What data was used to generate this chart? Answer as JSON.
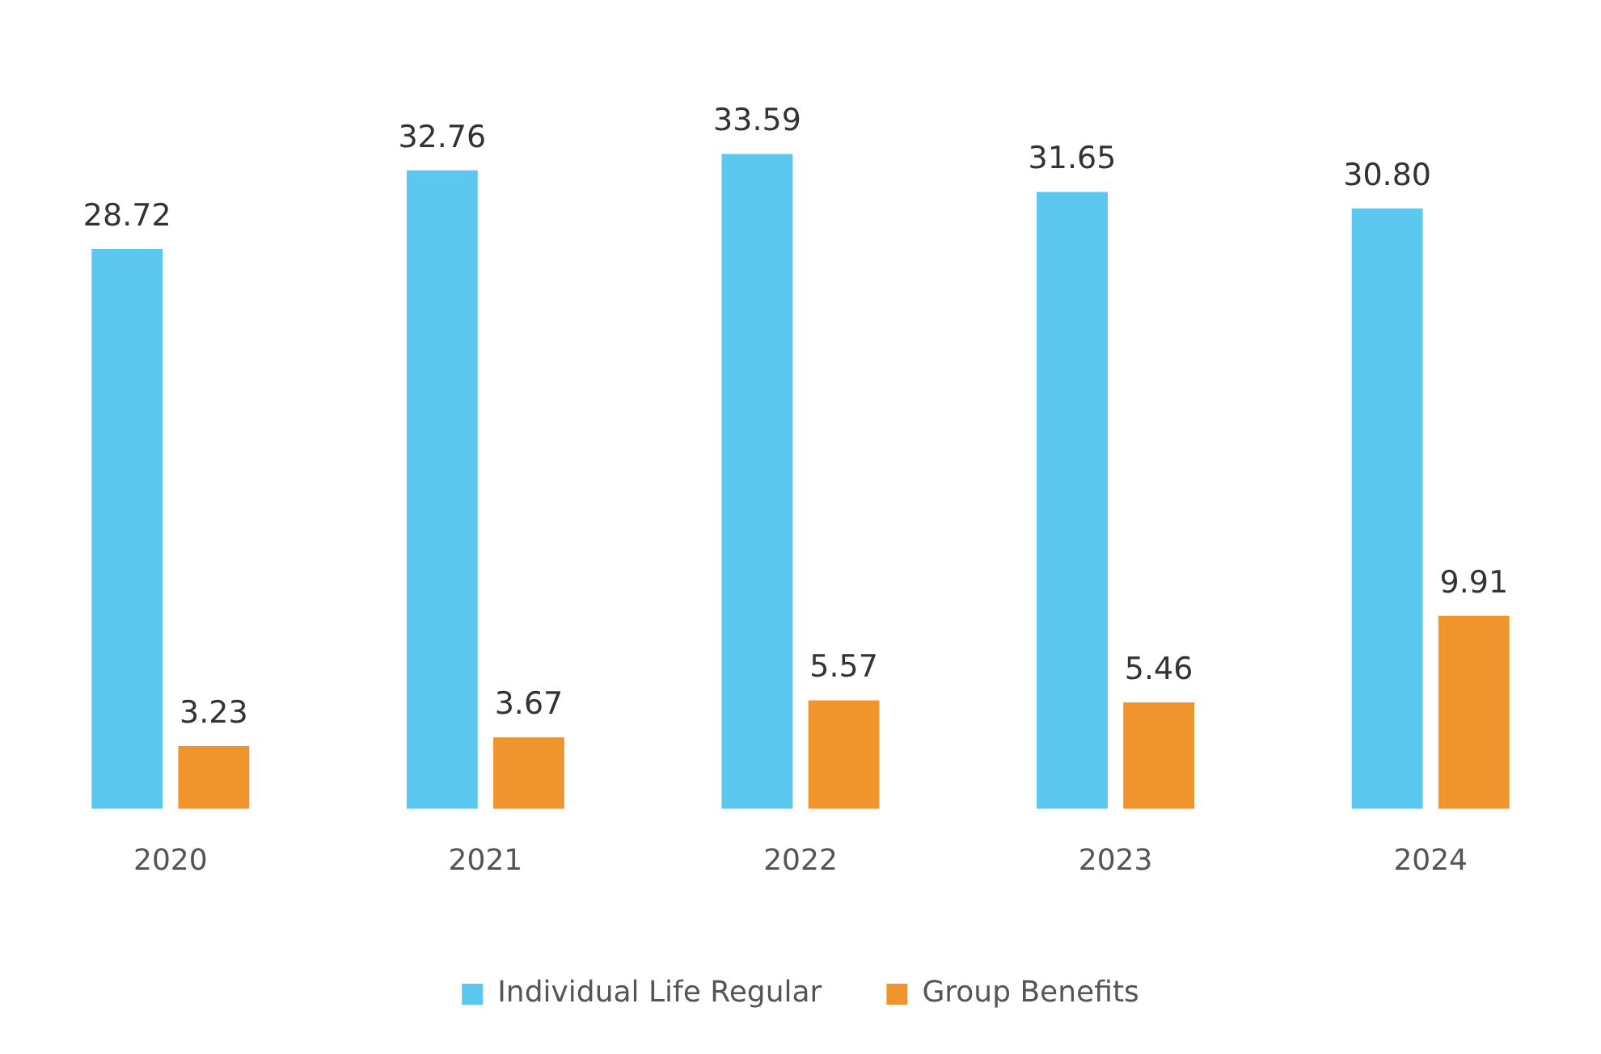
{
  "chart_data": {
    "type": "bar",
    "categories": [
      "2020",
      "2021",
      "2022",
      "2023",
      "2024"
    ],
    "series": [
      {
        "name": "Individual Life Regular",
        "color": "#5cc8ef",
        "values": [
          28.72,
          32.76,
          33.59,
          31.65,
          30.8
        ],
        "value_labels": [
          "28.72",
          "32.76",
          "33.59",
          "31.65",
          "30.80"
        ]
      },
      {
        "name": "Group Benefits",
        "color": "#f0952d",
        "values": [
          3.23,
          3.67,
          5.57,
          5.46,
          9.91
        ],
        "value_labels": [
          "3.23",
          "3.67",
          "5.57",
          "5.46",
          "9.91"
        ]
      }
    ],
    "legend": "bottom",
    "grid": false
  }
}
